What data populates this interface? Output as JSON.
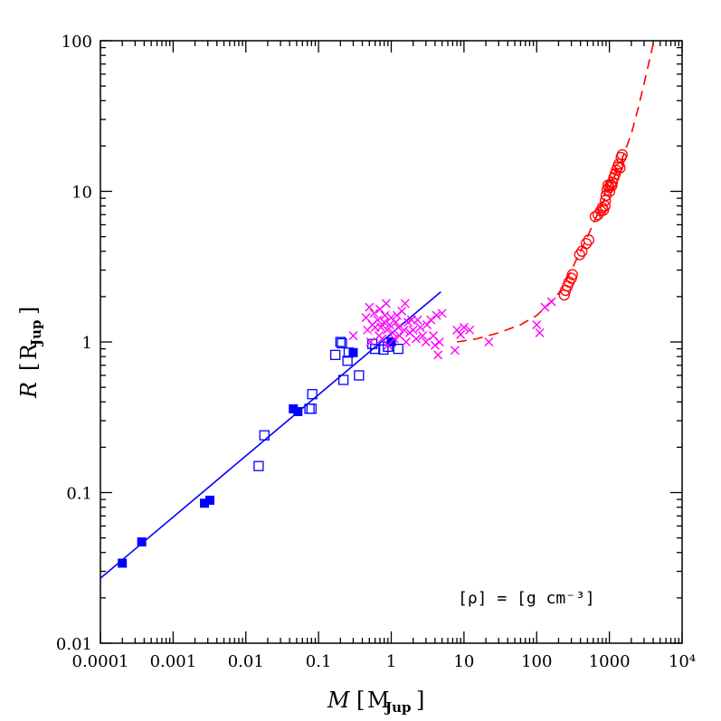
{
  "chart_data": {
    "type": "scatter",
    "xscale": "log",
    "yscale": "log",
    "xlim": [
      0.0001,
      10000
    ],
    "ylim": [
      0.01,
      100
    ],
    "x_tick_labels": [
      "0.0001",
      "0.001",
      "0.01",
      "0.1",
      "1",
      "10",
      "100",
      "1000",
      "10⁴"
    ],
    "y_tick_labels": [
      "0.01",
      "0.1",
      "1",
      "10",
      "100"
    ],
    "xlabel": {
      "symbol": "M",
      "unit": "M",
      "unit_sub": "Jup"
    },
    "ylabel": {
      "symbol": "R",
      "unit": "R",
      "unit_sub": "Jup"
    },
    "annotation": "[ρ] = [g cm⁻³]",
    "grid": false,
    "colors": {
      "blue": "#0000ff",
      "magenta": "#ff00ff",
      "red": "#ff0000"
    },
    "series": [
      {
        "marker": "filled-square",
        "color": "#0000ff",
        "points": [
          [
            0.0002,
            0.034
          ],
          [
            0.00037,
            0.047
          ],
          [
            0.0027,
            0.085
          ],
          [
            0.0032,
            0.089
          ],
          [
            0.045,
            0.36
          ],
          [
            0.052,
            0.345
          ],
          [
            0.3,
            0.85
          ],
          [
            1.0,
            1.0
          ]
        ]
      },
      {
        "marker": "open-square",
        "color": "#0000ff",
        "points": [
          [
            0.015,
            0.15
          ],
          [
            0.018,
            0.24
          ],
          [
            0.075,
            0.36
          ],
          [
            0.08,
            0.36
          ],
          [
            0.082,
            0.45
          ],
          [
            0.17,
            0.82
          ],
          [
            0.2,
            1.0
          ],
          [
            0.21,
            0.98
          ],
          [
            0.22,
            0.56
          ],
          [
            0.25,
            0.75
          ],
          [
            0.26,
            0.85
          ],
          [
            0.36,
            0.6
          ],
          [
            0.55,
            0.97
          ],
          [
            0.6,
            0.9
          ],
          [
            0.78,
            0.89
          ],
          [
            0.9,
            0.93
          ],
          [
            1.25,
            0.9
          ]
        ]
      },
      {
        "marker": "cross",
        "color": "#ff00ff",
        "points": [
          [
            0.3,
            1.1
          ],
          [
            0.45,
            1.45
          ],
          [
            0.47,
            1.2
          ],
          [
            0.5,
            1.7
          ],
          [
            0.52,
            1.0
          ],
          [
            0.55,
            1.3
          ],
          [
            0.58,
            1.55
          ],
          [
            0.6,
            1.25
          ],
          [
            0.65,
            1.4
          ],
          [
            0.68,
            1.1
          ],
          [
            0.7,
            1.65
          ],
          [
            0.72,
            1.25
          ],
          [
            0.75,
            1.05
          ],
          [
            0.8,
            1.35
          ],
          [
            0.82,
            1.5
          ],
          [
            0.85,
            1.8
          ],
          [
            0.88,
            1.2
          ],
          [
            0.9,
            0.95
          ],
          [
            0.95,
            1.3
          ],
          [
            1.0,
            1.45
          ],
          [
            1.05,
            1.15
          ],
          [
            1.1,
            1.05
          ],
          [
            1.15,
            1.35
          ],
          [
            1.2,
            1.5
          ],
          [
            1.25,
            1.25
          ],
          [
            1.3,
            1.1
          ],
          [
            1.4,
            1.6
          ],
          [
            1.5,
            1.2
          ],
          [
            1.55,
            1.8
          ],
          [
            1.6,
            1.0
          ],
          [
            1.7,
            1.35
          ],
          [
            1.8,
            1.15
          ],
          [
            1.9,
            1.4
          ],
          [
            2.0,
            1.2
          ],
          [
            2.2,
            1.05
          ],
          [
            2.3,
            1.4
          ],
          [
            2.5,
            1.25
          ],
          [
            2.7,
            1.1
          ],
          [
            3.0,
            1.0
          ],
          [
            3.1,
            1.3
          ],
          [
            3.5,
            1.4
          ],
          [
            3.8,
            1.1
          ],
          [
            4.0,
            0.95
          ],
          [
            4.2,
            1.5
          ],
          [
            4.4,
            0.82
          ],
          [
            4.6,
            1.0
          ],
          [
            5.0,
            1.55
          ],
          [
            7.5,
            0.88
          ],
          [
            8.0,
            1.2
          ],
          [
            9.0,
            1.12
          ],
          [
            10.0,
            1.25
          ],
          [
            12.0,
            1.2
          ],
          [
            22.0,
            1.0
          ],
          [
            100.0,
            1.3
          ],
          [
            110.0,
            1.15
          ],
          [
            130.0,
            1.7
          ],
          [
            160.0,
            1.85
          ]
        ]
      },
      {
        "marker": "open-circle",
        "color": "#ff0000",
        "points": [
          [
            240,
            2.05
          ],
          [
            250,
            2.2
          ],
          [
            265,
            2.35
          ],
          [
            280,
            2.5
          ],
          [
            300,
            2.65
          ],
          [
            310,
            2.8
          ],
          [
            390,
            3.8
          ],
          [
            420,
            4.0
          ],
          [
            480,
            4.5
          ],
          [
            520,
            4.75
          ],
          [
            640,
            6.8
          ],
          [
            700,
            7.0
          ],
          [
            760,
            7.4
          ],
          [
            800,
            7.8
          ],
          [
            830,
            7.5
          ],
          [
            870,
            8.0
          ],
          [
            880,
            8.7
          ],
          [
            900,
            9.4
          ],
          [
            930,
            10.2
          ],
          [
            960,
            11.0
          ],
          [
            990,
            10.6
          ],
          [
            1010,
            10.0
          ],
          [
            1040,
            11.1
          ],
          [
            1080,
            10.9
          ],
          [
            1100,
            11.5
          ],
          [
            1150,
            12.3
          ],
          [
            1200,
            13.0
          ],
          [
            1250,
            13.8
          ],
          [
            1300,
            14.5
          ],
          [
            1350,
            15.2
          ],
          [
            1400,
            14.3
          ],
          [
            1450,
            16.8
          ],
          [
            1500,
            17.5
          ]
        ]
      }
    ],
    "lines": [
      {
        "style": "solid",
        "color": "#0000ff",
        "points": [
          [
            0.0001,
            0.027
          ],
          [
            4.8,
            2.15
          ]
        ]
      },
      {
        "style": "dashed",
        "color": "#ff0000",
        "points": [
          [
            8,
            1.0
          ],
          [
            15,
            1.05
          ],
          [
            30,
            1.15
          ],
          [
            60,
            1.3
          ],
          [
            100,
            1.5
          ],
          [
            150,
            1.8
          ],
          [
            200,
            2.1
          ],
          [
            250,
            2.5
          ],
          [
            300,
            3.0
          ],
          [
            400,
            4.0
          ],
          [
            500,
            5.0
          ],
          [
            700,
            7.2
          ],
          [
            1000,
            10.5
          ],
          [
            1500,
            16.5
          ],
          [
            2000,
            24
          ],
          [
            2500,
            36
          ],
          [
            3000,
            52
          ],
          [
            3500,
            72
          ],
          [
            4000,
            95
          ],
          [
            4200,
            100
          ]
        ]
      }
    ]
  }
}
